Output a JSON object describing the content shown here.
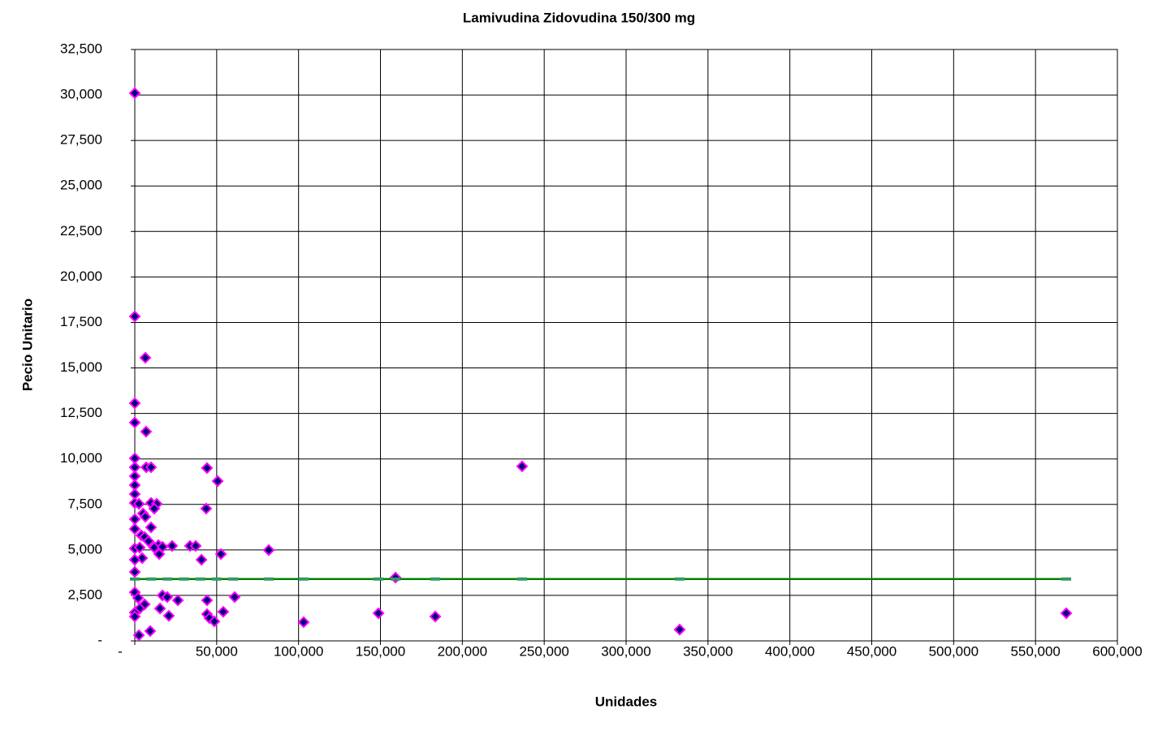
{
  "chart_data": {
    "type": "scatter",
    "title": "Lamivudina Zidovudina 150/300 mg",
    "xlabel": "Unidades",
    "ylabel": "Pecio Unitario",
    "xlim": [
      0,
      600000
    ],
    "ylim": [
      0,
      32500
    ],
    "xticks": [
      {
        "value": 0,
        "label": "-"
      },
      {
        "value": 50000,
        "label": "50,000"
      },
      {
        "value": 100000,
        "label": "100,000"
      },
      {
        "value": 150000,
        "label": "150,000"
      },
      {
        "value": 200000,
        "label": "200,000"
      },
      {
        "value": 250000,
        "label": "250,000"
      },
      {
        "value": 300000,
        "label": "300,000"
      },
      {
        "value": 350000,
        "label": "350,000"
      },
      {
        "value": 400000,
        "label": "400,000"
      },
      {
        "value": 450000,
        "label": "450,000"
      },
      {
        "value": 500000,
        "label": "500,000"
      },
      {
        "value": 550000,
        "label": "550,000"
      },
      {
        "value": 600000,
        "label": "600,000"
      }
    ],
    "yticks": [
      {
        "value": 0,
        "label": "-"
      },
      {
        "value": 2500,
        "label": "2,500"
      },
      {
        "value": 5000,
        "label": "5,000"
      },
      {
        "value": 7500,
        "label": "7,500"
      },
      {
        "value": 10000,
        "label": "10,000"
      },
      {
        "value": 12500,
        "label": "12,500"
      },
      {
        "value": 15000,
        "label": "15,000"
      },
      {
        "value": 17500,
        "label": "17,500"
      },
      {
        "value": 20000,
        "label": "20,000"
      },
      {
        "value": 22500,
        "label": "22,500"
      },
      {
        "value": 25000,
        "label": "25,000"
      },
      {
        "value": 27500,
        "label": "27,500"
      },
      {
        "value": 30000,
        "label": "30,000"
      },
      {
        "value": 32500,
        "label": "32,500"
      }
    ],
    "grid": true,
    "series": [
      {
        "marker": "diamond",
        "color": "#000080",
        "edgecolor": "#ff00ff",
        "x": [
          0,
          0,
          6450,
          0,
          0,
          6900,
          0,
          0,
          7000,
          9900,
          0,
          0,
          0,
          0,
          2500,
          9900,
          13400,
          11900,
          5000,
          0,
          6450,
          0,
          9900,
          4000,
          6000,
          8400,
          14400,
          11900,
          0,
          3000,
          16900,
          22800,
          33700,
          37200,
          14900,
          4500,
          0,
          40700,
          52600,
          81800,
          43600,
          44100,
          50600,
          236500,
          0,
          159200,
          0,
          2000,
          16900,
          19800,
          26300,
          44100,
          61000,
          6000,
          3000,
          15400,
          0,
          54000,
          44100,
          20800,
          45600,
          48600,
          0,
          148800,
          183500,
          103100,
          9400,
          2500,
          332700,
          568800
        ],
        "values": [
          30100,
          17830,
          15560,
          13060,
          12000,
          11500,
          10030,
          9540,
          9540,
          9540,
          9050,
          8560,
          8070,
          7580,
          7530,
          7580,
          7530,
          7270,
          7000,
          6690,
          6820,
          6150,
          6240,
          5800,
          5710,
          5480,
          5260,
          5130,
          5080,
          5130,
          5170,
          5220,
          5220,
          5220,
          4770,
          4550,
          4460,
          4460,
          4770,
          4990,
          7270,
          9500,
          8780,
          9590,
          3790,
          3480,
          2670,
          2360,
          2500,
          2410,
          2230,
          2230,
          2410,
          2010,
          1780,
          1780,
          1560,
          1600,
          1470,
          1380,
          1250,
          1070,
          1340,
          1520,
          1340,
          1030,
          540,
          310,
          620,
          1520
        ]
      },
      {
        "marker": "dash",
        "line": true,
        "color": "#008000",
        "marker_color": "#339966",
        "x": [
          0,
          10000,
          20000,
          30000,
          40000,
          50000,
          60000,
          81800,
          103100,
          148800,
          159200,
          183500,
          236500,
          332700,
          568800
        ],
        "values": [
          3400,
          3400,
          3400,
          3400,
          3400,
          3400,
          3400,
          3400,
          3400,
          3400,
          3400,
          3400,
          3400,
          3400,
          3400
        ]
      }
    ]
  }
}
